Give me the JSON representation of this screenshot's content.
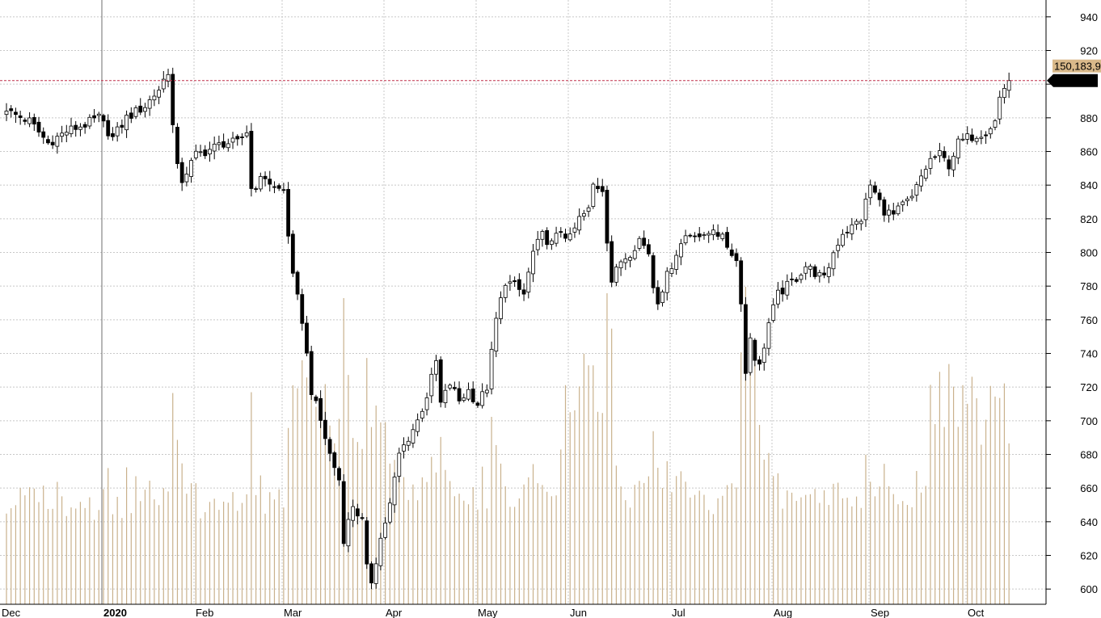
{
  "chart_data": {
    "type": "candlestick",
    "title": "",
    "xlabel": "",
    "ylabel": "",
    "ylim": [
      590,
      950
    ],
    "y_ticks": [
      600,
      620,
      640,
      660,
      680,
      700,
      720,
      740,
      760,
      780,
      800,
      820,
      840,
      860,
      880,
      900,
      920,
      940
    ],
    "y_tick_labels": [
      "600",
      "620",
      "640",
      "660",
      "680",
      "700",
      "720",
      "740",
      "760",
      "780",
      "800",
      "820",
      "840",
      "860",
      "880",
      "",
      "920",
      "940"
    ],
    "x_labels": [
      {
        "label": "Dec",
        "index": -1
      },
      {
        "label": "2020",
        "index": 21
      },
      {
        "label": "Feb",
        "index": 41
      },
      {
        "label": "Mar",
        "index": 60
      },
      {
        "label": "Apr",
        "index": 82
      },
      {
        "label": "May",
        "index": 102
      },
      {
        "label": "Jun",
        "index": 122
      },
      {
        "label": "Jul",
        "index": 144
      },
      {
        "label": "Aug",
        "index": 166
      },
      {
        "label": "Sep",
        "index": 187
      },
      {
        "label": "Oct",
        "index": 208
      }
    ],
    "grid": true,
    "last_price": "902.14",
    "last_volume": "150,183,9",
    "last_price_value": 902.14,
    "colors": {
      "background": "#ffffff",
      "grid": "#c8c8c8",
      "candle": "#000000",
      "volume": "#c9b18c",
      "last_price_line": "#c0304a",
      "price_box": "#000000",
      "volume_box": "#d9b98a"
    },
    "close_anchors": [
      [
        0,
        884
      ],
      [
        5,
        878
      ],
      [
        9,
        865
      ],
      [
        13,
        872
      ],
      [
        17,
        876
      ],
      [
        20,
        880
      ],
      [
        23,
        868
      ],
      [
        26,
        880
      ],
      [
        30,
        887
      ],
      [
        33,
        897
      ],
      [
        35,
        908
      ],
      [
        36,
        875
      ],
      [
        37,
        850
      ],
      [
        38,
        843
      ],
      [
        41,
        858
      ],
      [
        43,
        860
      ],
      [
        47,
        865
      ],
      [
        50,
        865
      ],
      [
        52,
        872
      ],
      [
        53,
        838
      ],
      [
        56,
        845
      ],
      [
        58,
        838
      ],
      [
        60,
        837
      ],
      [
        62,
        785
      ],
      [
        64,
        760
      ],
      [
        66,
        718
      ],
      [
        68,
        700
      ],
      [
        70,
        680
      ],
      [
        72,
        665
      ],
      [
        73,
        630
      ],
      [
        75,
        650
      ],
      [
        77,
        640
      ],
      [
        78,
        612
      ],
      [
        79,
        605
      ],
      [
        81,
        630
      ],
      [
        83,
        650
      ],
      [
        85,
        680
      ],
      [
        87,
        690
      ],
      [
        89,
        700
      ],
      [
        91,
        715
      ],
      [
        93,
        735
      ],
      [
        94,
        710
      ],
      [
        96,
        722
      ],
      [
        98,
        712
      ],
      [
        100,
        718
      ],
      [
        102,
        710
      ],
      [
        104,
        720
      ],
      [
        105,
        740
      ],
      [
        106,
        760
      ],
      [
        108,
        783
      ],
      [
        110,
        780
      ],
      [
        112,
        775
      ],
      [
        114,
        800
      ],
      [
        116,
        810
      ],
      [
        118,
        805
      ],
      [
        120,
        813
      ],
      [
        122,
        808
      ],
      [
        124,
        820
      ],
      [
        126,
        825
      ],
      [
        127,
        840
      ],
      [
        129,
        838
      ],
      [
        130,
        808
      ],
      [
        131,
        783
      ],
      [
        133,
        795
      ],
      [
        135,
        800
      ],
      [
        137,
        808
      ],
      [
        139,
        800
      ],
      [
        140,
        780
      ],
      [
        141,
        772
      ],
      [
        143,
        786
      ],
      [
        145,
        800
      ],
      [
        147,
        810
      ],
      [
        149,
        812
      ],
      [
        151,
        808
      ],
      [
        153,
        815
      ],
      [
        155,
        808
      ],
      [
        157,
        800
      ],
      [
        158,
        795
      ],
      [
        159,
        772
      ],
      [
        160,
        728
      ],
      [
        161,
        750
      ],
      [
        162,
        738
      ],
      [
        163,
        732
      ],
      [
        165,
        758
      ],
      [
        167,
        775
      ],
      [
        169,
        780
      ],
      [
        171,
        785
      ],
      [
        173,
        792
      ],
      [
        175,
        788
      ],
      [
        177,
        784
      ],
      [
        179,
        800
      ],
      [
        181,
        812
      ],
      [
        183,
        815
      ],
      [
        185,
        820
      ],
      [
        187,
        840
      ],
      [
        188,
        835
      ],
      [
        190,
        825
      ],
      [
        192,
        822
      ],
      [
        194,
        828
      ],
      [
        196,
        832
      ],
      [
        198,
        845
      ],
      [
        200,
        855
      ],
      [
        202,
        858
      ],
      [
        204,
        852
      ],
      [
        206,
        865
      ],
      [
        208,
        868
      ],
      [
        210,
        870
      ],
      [
        212,
        872
      ],
      [
        214,
        878
      ],
      [
        215,
        892
      ],
      [
        216,
        898
      ],
      [
        217,
        902.14
      ]
    ]
  }
}
